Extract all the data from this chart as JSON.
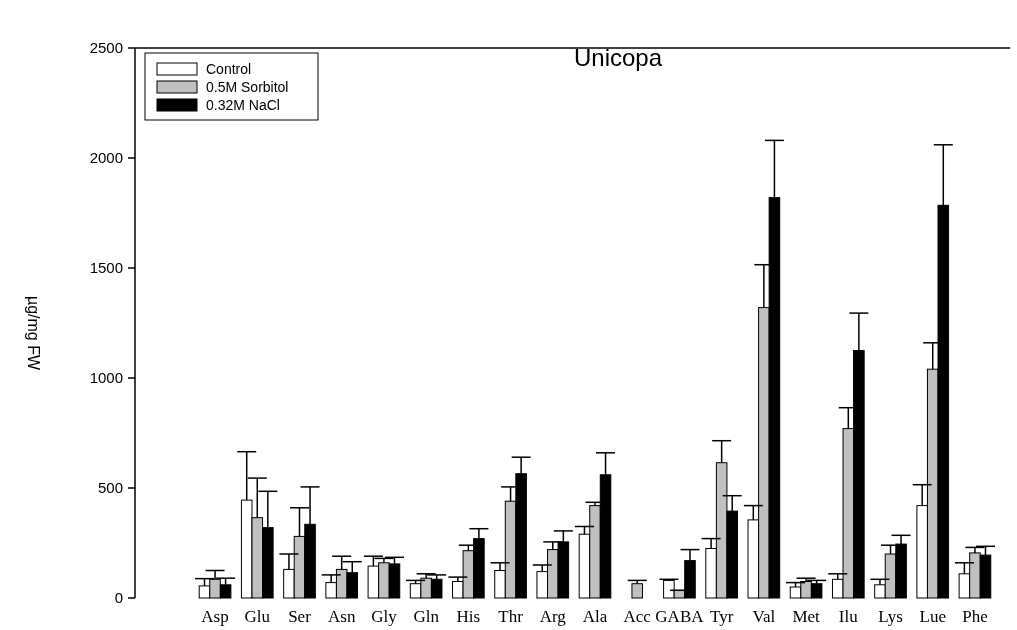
{
  "chart_data": {
    "type": "bar",
    "title": "Unicopa",
    "ylabel": "µg/mg FW",
    "categories": [
      "Asp",
      "Glu",
      "Ser",
      "Asn",
      "Gly",
      "Gln",
      "His",
      "Thr",
      "Arg",
      "Ala",
      "Acc",
      "GABA",
      "Tyr",
      "Val",
      "Met",
      "Ilu",
      "Lys",
      "Lue",
      "Phe"
    ],
    "series": [
      {
        "name": "Control",
        "color": "#ffffff",
        "values": [
          55,
          445,
          130,
          70,
          145,
          65,
          75,
          125,
          120,
          290,
          0,
          80,
          225,
          355,
          50,
          85,
          60,
          420,
          110
        ],
        "errors": [
          [
            55,
            88
          ],
          [
            445,
            665
          ],
          [
            130,
            200
          ],
          [
            70,
            105
          ],
          [
            145,
            190
          ],
          [
            65,
            80
          ],
          [
            75,
            95
          ],
          [
            125,
            160
          ],
          [
            120,
            150
          ],
          [
            290,
            325
          ],
          null,
          [
            80,
            85
          ],
          [
            225,
            270
          ],
          [
            355,
            420
          ],
          [
            50,
            70
          ],
          [
            85,
            110
          ],
          [
            60,
            85
          ],
          [
            420,
            515
          ],
          [
            110,
            160
          ]
        ]
      },
      {
        "name": "0.5M Sorbitol",
        "color": "#c0c0c0",
        "values": [
          85,
          365,
          280,
          130,
          160,
          90,
          215,
          440,
          220,
          420,
          65,
          35,
          615,
          1320,
          75,
          770,
          200,
          1040,
          205
        ],
        "errors": [
          [
            85,
            125
          ],
          [
            365,
            545
          ],
          [
            280,
            410
          ],
          [
            130,
            190
          ],
          [
            160,
            180
          ],
          [
            90,
            110
          ],
          [
            215,
            240
          ],
          [
            440,
            505
          ],
          [
            220,
            255
          ],
          [
            420,
            435
          ],
          [
            65,
            80
          ],
          [
            35,
            35
          ],
          [
            615,
            715
          ],
          [
            1320,
            1515
          ],
          [
            75,
            90
          ],
          [
            770,
            865
          ],
          [
            200,
            240
          ],
          [
            1040,
            1160
          ],
          [
            205,
            230
          ]
        ]
      },
      {
        "name": "0.32M NaCl",
        "color": "#000000",
        "values": [
          60,
          320,
          335,
          115,
          155,
          85,
          270,
          565,
          255,
          560,
          0,
          170,
          395,
          1820,
          65,
          1125,
          245,
          1785,
          195
        ],
        "errors": [
          [
            60,
            90
          ],
          [
            320,
            485
          ],
          [
            335,
            505
          ],
          [
            115,
            165
          ],
          [
            155,
            185
          ],
          [
            85,
            105
          ],
          [
            270,
            315
          ],
          [
            565,
            640
          ],
          [
            255,
            305
          ],
          [
            560,
            660
          ],
          null,
          [
            170,
            220
          ],
          [
            395,
            465
          ],
          [
            1820,
            2080
          ],
          [
            65,
            80
          ],
          [
            1125,
            1295
          ],
          [
            245,
            285
          ],
          [
            1785,
            2060
          ],
          [
            195,
            235
          ]
        ]
      }
    ],
    "ylim": [
      0,
      2500
    ],
    "yticks": [
      0,
      500,
      1000,
      1500,
      2000,
      2500
    ],
    "grid": false,
    "legend": "top left"
  }
}
